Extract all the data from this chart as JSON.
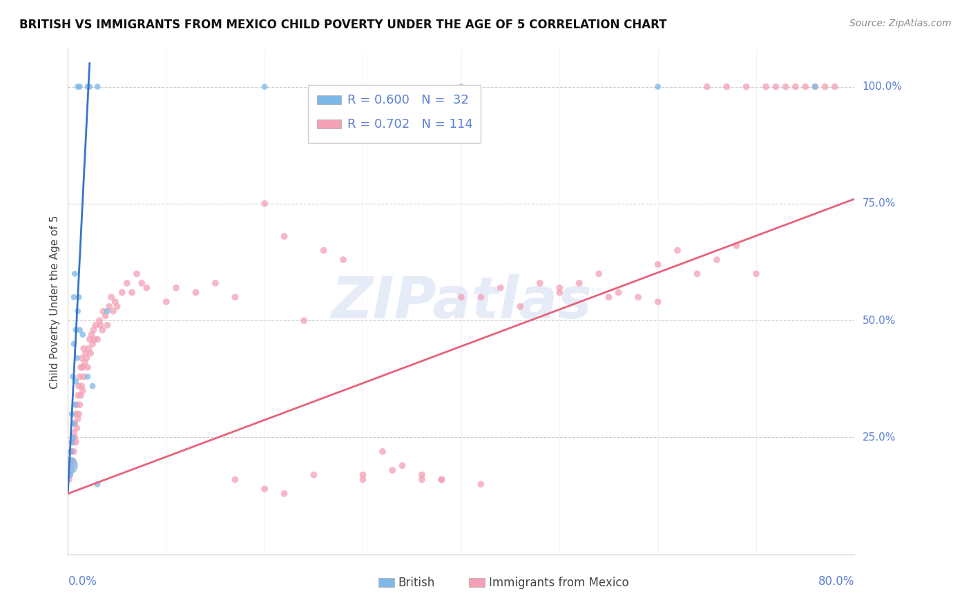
{
  "title": "BRITISH VS IMMIGRANTS FROM MEXICO CHILD POVERTY UNDER THE AGE OF 5 CORRELATION CHART",
  "source": "Source: ZipAtlas.com",
  "ylabel": "Child Poverty Under the Age of 5",
  "british_color": "#7db8e8",
  "mexico_color": "#f4a0b5",
  "british_line_color": "#3575c8",
  "mexico_line_color": "#e8607a",
  "right_tick_color": "#5b7fd4",
  "xlim": [
    0.0,
    0.8
  ],
  "ylim": [
    0.0,
    1.08
  ],
  "british_x": [
    0.001,
    0.002,
    0.003,
    0.004,
    0.004,
    0.005,
    0.005,
    0.006,
    0.006,
    0.006,
    0.007,
    0.007,
    0.008,
    0.008,
    0.009,
    0.01,
    0.011,
    0.012,
    0.015,
    0.02,
    0.025,
    0.03,
    0.04,
    0.01,
    0.012,
    0.02,
    0.022,
    0.03,
    0.2,
    0.4,
    0.6,
    0.76
  ],
  "british_y": [
    0.19,
    0.17,
    0.22,
    0.24,
    0.3,
    0.25,
    0.38,
    0.28,
    0.45,
    0.55,
    0.32,
    0.6,
    0.37,
    0.48,
    0.42,
    0.52,
    0.55,
    0.48,
    0.47,
    0.38,
    0.36,
    0.15,
    0.52,
    1.0,
    1.0,
    1.0,
    1.0,
    1.0,
    1.0,
    1.0,
    1.0,
    1.0
  ],
  "british_sizes": [
    350,
    40,
    40,
    40,
    40,
    40,
    40,
    40,
    40,
    40,
    40,
    40,
    40,
    40,
    40,
    40,
    40,
    40,
    40,
    40,
    40,
    40,
    40,
    40,
    40,
    40,
    40,
    40,
    40,
    40,
    40,
    40
  ],
  "mexico_x": [
    0.001,
    0.002,
    0.003,
    0.003,
    0.004,
    0.004,
    0.005,
    0.005,
    0.006,
    0.006,
    0.007,
    0.007,
    0.008,
    0.008,
    0.009,
    0.009,
    0.01,
    0.01,
    0.011,
    0.011,
    0.012,
    0.012,
    0.013,
    0.013,
    0.014,
    0.014,
    0.015,
    0.015,
    0.016,
    0.016,
    0.017,
    0.018,
    0.019,
    0.02,
    0.021,
    0.022,
    0.023,
    0.024,
    0.025,
    0.026,
    0.027,
    0.028,
    0.03,
    0.032,
    0.033,
    0.035,
    0.036,
    0.038,
    0.04,
    0.042,
    0.044,
    0.046,
    0.048,
    0.05,
    0.055,
    0.06,
    0.065,
    0.07,
    0.075,
    0.08,
    0.1,
    0.11,
    0.13,
    0.15,
    0.17,
    0.2,
    0.22,
    0.24,
    0.26,
    0.28,
    0.3,
    0.32,
    0.34,
    0.36,
    0.38,
    0.4,
    0.42,
    0.44,
    0.46,
    0.48,
    0.5,
    0.52,
    0.54,
    0.56,
    0.58,
    0.6,
    0.62,
    0.64,
    0.66,
    0.68,
    0.7,
    0.3,
    0.33,
    0.36,
    0.5,
    0.55,
    0.6,
    0.38,
    0.42,
    0.2,
    0.25,
    0.17,
    0.22,
    0.69,
    0.71,
    0.73,
    0.75,
    0.65,
    0.67,
    0.72,
    0.74,
    0.76,
    0.77,
    0.78
  ],
  "mexico_y": [
    0.16,
    0.17,
    0.18,
    0.2,
    0.19,
    0.22,
    0.2,
    0.24,
    0.22,
    0.26,
    0.25,
    0.28,
    0.24,
    0.3,
    0.27,
    0.32,
    0.29,
    0.34,
    0.3,
    0.36,
    0.32,
    0.38,
    0.34,
    0.4,
    0.36,
    0.42,
    0.35,
    0.4,
    0.38,
    0.44,
    0.41,
    0.43,
    0.42,
    0.4,
    0.44,
    0.46,
    0.43,
    0.47,
    0.45,
    0.48,
    0.46,
    0.49,
    0.46,
    0.5,
    0.49,
    0.48,
    0.52,
    0.51,
    0.49,
    0.53,
    0.55,
    0.52,
    0.54,
    0.53,
    0.56,
    0.58,
    0.56,
    0.6,
    0.58,
    0.57,
    0.54,
    0.57,
    0.56,
    0.58,
    0.55,
    0.75,
    0.68,
    0.5,
    0.65,
    0.63,
    0.17,
    0.22,
    0.19,
    0.16,
    0.16,
    0.55,
    0.55,
    0.57,
    0.53,
    0.58,
    0.56,
    0.58,
    0.6,
    0.56,
    0.55,
    0.62,
    0.65,
    0.6,
    0.63,
    0.66,
    0.6,
    0.16,
    0.18,
    0.17,
    0.57,
    0.55,
    0.54,
    0.16,
    0.15,
    0.14,
    0.17,
    0.16,
    0.13,
    1.0,
    1.0,
    1.0,
    1.0,
    1.0,
    1.0,
    1.0,
    1.0,
    1.0,
    1.0,
    1.0
  ],
  "british_line_x": [
    0.0,
    0.022
  ],
  "british_line_y": [
    0.135,
    1.05
  ],
  "mexico_line_x": [
    0.0,
    0.8
  ],
  "mexico_line_y": [
    0.13,
    0.76
  ]
}
